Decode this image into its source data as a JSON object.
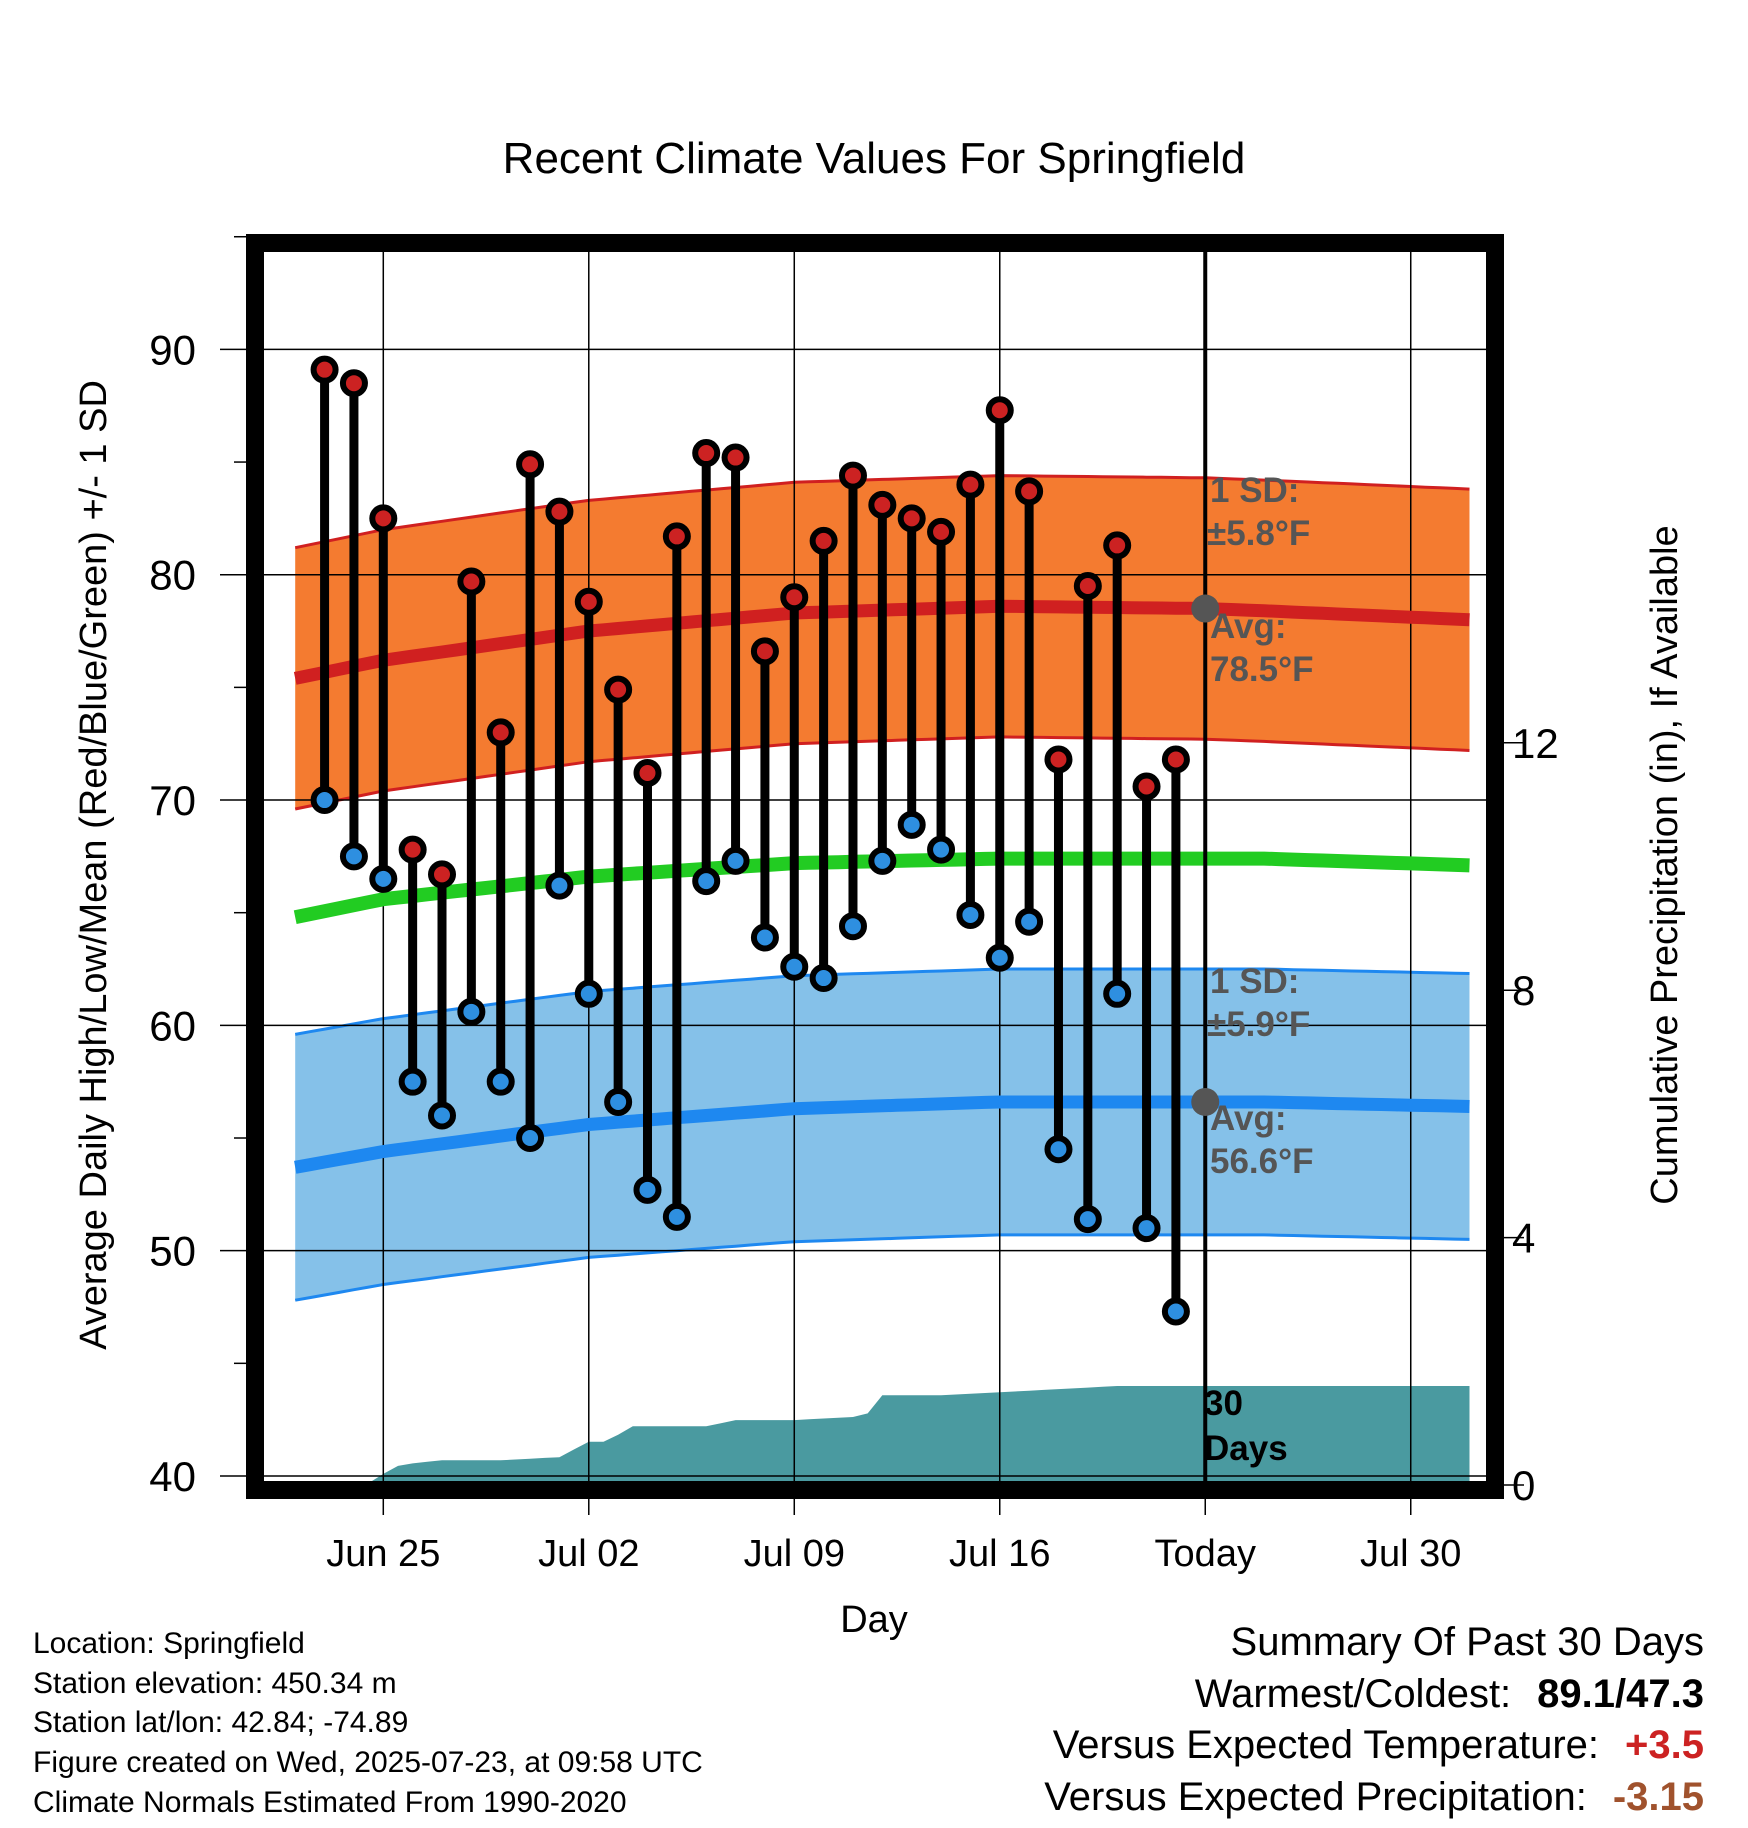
{
  "title": "Recent Climate Values For Springfield",
  "xlabel": "Day",
  "ylabel_left": "Average Daily High/Low/Mean (Red/Blue/Green) +/- 1 SD",
  "ylabel_right": "Cumulative Precipitation (in), If Available",
  "annotations": {
    "high_sd_line1": "1 SD:",
    "high_sd_line2": "±5.8°F",
    "high_avg_line1": "Avg:",
    "high_avg_line2": "78.5°F",
    "low_sd_line1": "1 SD:",
    "low_sd_line2": "±5.9°F",
    "low_avg_line1": "Avg:",
    "low_avg_line2": "56.6°F",
    "days_line1": "30",
    "days_line2": "Days"
  },
  "footer": {
    "location": "Location: Springfield",
    "elevation": "Station elevation: 450.34 m",
    "latlon": "Station lat/lon: 42.84; -74.89",
    "created": "Figure created on Wed, 2025-07-23, at 09:58 UTC",
    "normals": "Climate Normals Estimated From 1990-2020"
  },
  "summary": {
    "heading": "Summary Of Past 30 Days",
    "warm_cold_label": "Warmest/Coldest:",
    "warm_cold_value": "89.1/47.3",
    "temp_label": "Versus Expected Temperature:",
    "temp_value": "+3.5",
    "precip_label": "Versus Expected Precipitation:",
    "precip_value": "-3.15"
  },
  "colors": {
    "high_band": "#f47b30",
    "high_line": "#d02020",
    "low_band": "#85c1e9",
    "low_line": "#1e88f0",
    "mean_line": "#22cc22",
    "precip": "#4a9aa0",
    "marker_high": "#cc2222",
    "marker_low": "#2e8fe0",
    "avg_dot": "#555555",
    "temp_value": "#cc2222",
    "precip_value": "#a0522d"
  },
  "chart_data": {
    "type": "line",
    "x_axis": {
      "min_day_offset": -32.2,
      "max_day_offset": 9.7,
      "ticks": [
        {
          "label": "Jun 25",
          "offset": -28
        },
        {
          "label": "Jul 02",
          "offset": -21
        },
        {
          "label": "Jul 09",
          "offset": -14
        },
        {
          "label": "Jul 16",
          "offset": -7
        },
        {
          "label": "Today",
          "offset": 0
        },
        {
          "label": "Jul 30",
          "offset": 7
        }
      ]
    },
    "y_left": {
      "min": 39.6,
      "max": 94.5,
      "ticks": [
        40,
        50,
        60,
        70,
        80,
        90
      ],
      "minor_step": 5
    },
    "y_right": {
      "min": 0,
      "max": 20.0,
      "ticks": [
        0,
        4,
        8,
        12
      ]
    },
    "grid": true,
    "daily_high": [
      89.1,
      88.5,
      82.5,
      67.8,
      66.7,
      79.7,
      73.0,
      84.9,
      82.8,
      78.8,
      74.9,
      71.2,
      81.7,
      85.4,
      85.2,
      76.6,
      79.0,
      81.5,
      84.4,
      83.1,
      82.5,
      81.9,
      84.0,
      87.3,
      83.7,
      71.8,
      79.5,
      81.3,
      70.6,
      71.8
    ],
    "daily_low": [
      70.0,
      67.5,
      66.5,
      57.5,
      56.0,
      60.6,
      57.5,
      55.0,
      66.2,
      61.4,
      56.6,
      52.7,
      51.5,
      66.4,
      67.3,
      63.9,
      62.6,
      62.1,
      64.4,
      67.3,
      68.9,
      67.8,
      64.9,
      63.0,
      64.6,
      54.5,
      51.4,
      61.4,
      51.0,
      47.3
    ],
    "normal_high": {
      "offsets": [
        -31,
        -28,
        -21,
        -14,
        -7,
        0,
        2,
        9
      ],
      "values": [
        75.4,
        76.2,
        77.5,
        78.3,
        78.6,
        78.5,
        78.4,
        78.0
      ],
      "sd": 5.8
    },
    "normal_mean": {
      "offsets": [
        -31,
        -28,
        -21,
        -14,
        -7,
        0,
        2,
        9
      ],
      "values": [
        64.8,
        65.6,
        66.6,
        67.2,
        67.4,
        67.4,
        67.4,
        67.1
      ]
    },
    "normal_low": {
      "offsets": [
        -31,
        -28,
        -21,
        -14,
        -7,
        0,
        2,
        9
      ],
      "values": [
        53.7,
        54.4,
        55.6,
        56.3,
        56.6,
        56.6,
        56.6,
        56.4
      ],
      "sd": 5.9
    },
    "cumulative_precip": {
      "offsets": [
        -31,
        -28.6,
        -27.6,
        -27,
        -26,
        -24,
        -22,
        -21,
        -20.4,
        -19.5,
        -17,
        -16,
        -15,
        -14,
        -12,
        -11.6,
        -11,
        -9,
        -7,
        -5,
        -3,
        0,
        2,
        9
      ],
      "values": [
        0,
        0,
        0.3,
        0.35,
        0.4,
        0.4,
        0.45,
        0.7,
        0.7,
        0.95,
        0.95,
        1.05,
        1.05,
        1.05,
        1.1,
        1.1,
        1.45,
        1.45,
        1.5,
        1.55,
        1.6,
        1.6,
        1.6,
        1.6
      ]
    }
  }
}
